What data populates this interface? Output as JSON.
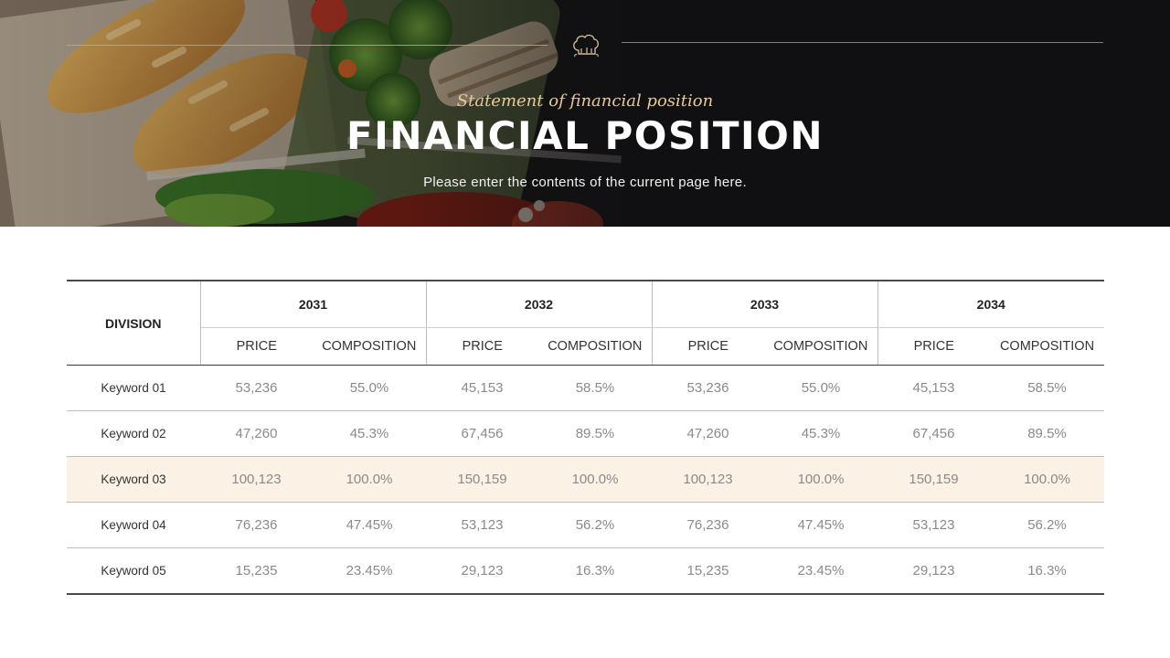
{
  "header": {
    "subtitle": "Statement of financial position",
    "title": "FINANCIAL POSITION",
    "description": "Please enter the contents of the current page here."
  },
  "icons": {
    "header_icon": "chef-hat-icon"
  },
  "colors": {
    "highlight_row": "#fbf1e5",
    "subtitle_gold": "#e8c99a"
  },
  "table": {
    "division_label": "DIVISION",
    "years": [
      "2031",
      "2032",
      "2033",
      "2034"
    ],
    "sub_headers": [
      "PRICE",
      "COMPOSITION",
      "PRICE",
      "COMPOSITION",
      "PRICE",
      "COMPOSITION",
      "PRICE",
      "COMPOSITION"
    ],
    "highlighted_row": 2,
    "rows": [
      {
        "label": "Keyword 01",
        "cells": [
          "53,236",
          "55.0%",
          "45,153",
          "58.5%",
          "53,236",
          "55.0%",
          "45,153",
          "58.5%"
        ]
      },
      {
        "label": "Keyword 02",
        "cells": [
          "47,260",
          "45.3%",
          "67,456",
          "89.5%",
          "47,260",
          "45.3%",
          "67,456",
          "89.5%"
        ]
      },
      {
        "label": "Keyword 03",
        "cells": [
          "100,123",
          "100.0%",
          "150,159",
          "100.0%",
          "100,123",
          "100.0%",
          "150,159",
          "100.0%"
        ]
      },
      {
        "label": "Keyword 04",
        "cells": [
          "76,236",
          "47.45%",
          "53,123",
          "56.2%",
          "76,236",
          "47.45%",
          "53,123",
          "56.2%"
        ]
      },
      {
        "label": "Keyword 05",
        "cells": [
          "15,235",
          "23.45%",
          "29,123",
          "16.3%",
          "15,235",
          "23.45%",
          "29,123",
          "16.3%"
        ]
      }
    ]
  }
}
